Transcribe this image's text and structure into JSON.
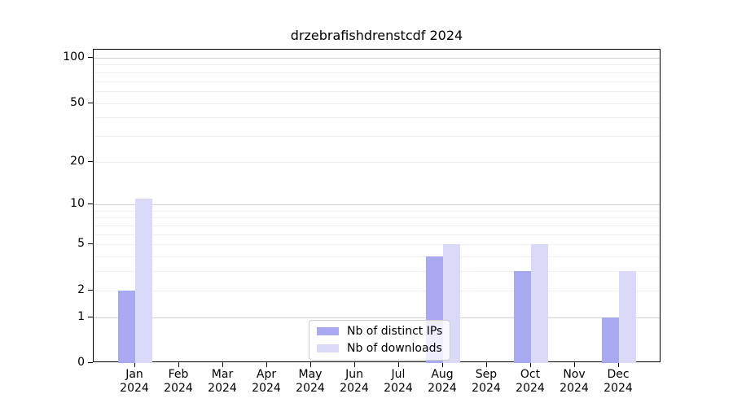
{
  "chart_data": {
    "type": "bar",
    "title": "drzebrafishdrenstcdf 2024",
    "categories": [
      "Jan 2024",
      "Feb 2024",
      "Mar 2024",
      "Apr 2024",
      "May 2024",
      "Jun 2024",
      "Jul 2024",
      "Aug 2024",
      "Sep 2024",
      "Oct 2024",
      "Nov 2024",
      "Dec 2024"
    ],
    "series": [
      {
        "name": "Nb of distinct IPs",
        "color": "#a9a9f2",
        "values": [
          2,
          0,
          0,
          0,
          0,
          0,
          0,
          4,
          0,
          3,
          0,
          1
        ]
      },
      {
        "name": "Nb of downloads",
        "color": "#dadaf8",
        "values": [
          11,
          0,
          0,
          0,
          0,
          0,
          0,
          5,
          0,
          5,
          0,
          3
        ]
      }
    ],
    "xlabel": "",
    "ylabel": "",
    "yscale": "log1p",
    "ylim": [
      0,
      113
    ],
    "yticks": [
      0,
      1,
      2,
      5,
      10,
      20,
      50,
      100
    ],
    "grid": {
      "major": [
        1,
        10,
        100
      ],
      "minor": [
        2,
        3,
        4,
        5,
        6,
        7,
        8,
        9,
        20,
        30,
        40,
        50,
        60,
        70,
        80,
        90
      ]
    },
    "legend_position": "lower-center"
  }
}
